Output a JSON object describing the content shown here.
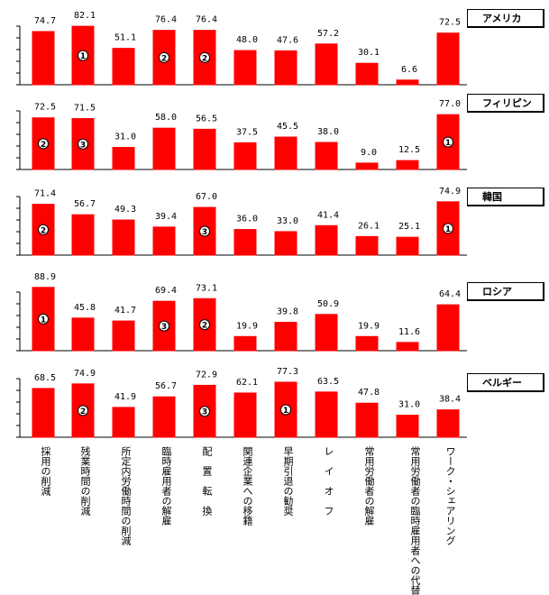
{
  "chart_data": {
    "type": "bar",
    "color": "#ff0000",
    "categories": [
      "採用の削減",
      "残業時間の削減",
      "所定内労働時間の削減",
      "臨時雇用者の解雇",
      "配　置　転　換",
      "関連企業への移籍",
      "早期引退の勧奨",
      "レ　イ　オ　フ",
      "常用労働者の解雇",
      "常用労働者の臨時雇用者への代替",
      "ワーク・シェアリング"
    ],
    "ylim": [
      0,
      100
    ],
    "panels": [
      {
        "country": "アメリカ",
        "values": [
          74.7,
          82.1,
          51.1,
          76.4,
          76.4,
          48.0,
          47.6,
          57.2,
          30.1,
          6.6,
          72.5
        ],
        "labels": [
          "74.7",
          "82.1",
          "51.1",
          "76.4",
          "76.4",
          "48.0",
          "47.6",
          "57.2",
          "30.1",
          "6.6",
          "72.5"
        ],
        "ranks": [
          null,
          "1",
          null,
          "2",
          "2",
          null,
          null,
          null,
          null,
          null,
          null
        ]
      },
      {
        "country": "フィリピン",
        "values": [
          72.5,
          71.5,
          31.0,
          58.0,
          56.5,
          37.5,
          45.5,
          38.0,
          9.0,
          12.5,
          77.0
        ],
        "labels": [
          "72.5",
          "71.5",
          "31.0",
          "58.0",
          "56.5",
          "37.5",
          "45.5",
          "38.0",
          "9.0",
          "12.5",
          "77.0"
        ],
        "ranks": [
          "2",
          "3",
          null,
          null,
          null,
          null,
          null,
          null,
          null,
          null,
          "1"
        ]
      },
      {
        "country": "韓国",
        "values": [
          71.4,
          56.7,
          49.3,
          39.4,
          67.0,
          36.0,
          33.0,
          41.4,
          26.1,
          25.1,
          74.9
        ],
        "labels": [
          "71.4",
          "56.7",
          "49.3",
          "39.4",
          "67.0",
          "36.0",
          "33.0",
          "41.4",
          "26.1",
          "25.1",
          "74.9"
        ],
        "ranks": [
          "2",
          null,
          null,
          null,
          "3",
          null,
          null,
          null,
          null,
          null,
          "1"
        ]
      },
      {
        "country": "ロシア",
        "values": [
          88.9,
          45.8,
          41.7,
          69.4,
          73.1,
          19.9,
          39.8,
          50.9,
          19.9,
          11.6,
          64.4
        ],
        "labels": [
          "88.9",
          "45.8",
          "41.7",
          "69.4",
          "73.1",
          "19.9",
          "39.8",
          "50.9",
          "19.9",
          "11.6",
          "64.4"
        ],
        "ranks": [
          "1",
          null,
          null,
          "3",
          "2",
          null,
          null,
          null,
          null,
          null,
          null
        ]
      },
      {
        "country": "ベルギー",
        "values": [
          68.5,
          74.9,
          41.9,
          56.7,
          72.9,
          62.1,
          77.3,
          63.5,
          47.8,
          31.0,
          38.4
        ],
        "labels": [
          "68.5",
          "74.9",
          "41.9",
          "56.7",
          "72.9",
          "62.1",
          "77.3",
          "63.5",
          "47.8",
          "31.0",
          "38.4"
        ],
        "ranks": [
          null,
          "2",
          null,
          null,
          "3",
          null,
          "1",
          null,
          null,
          null,
          null
        ]
      }
    ]
  }
}
